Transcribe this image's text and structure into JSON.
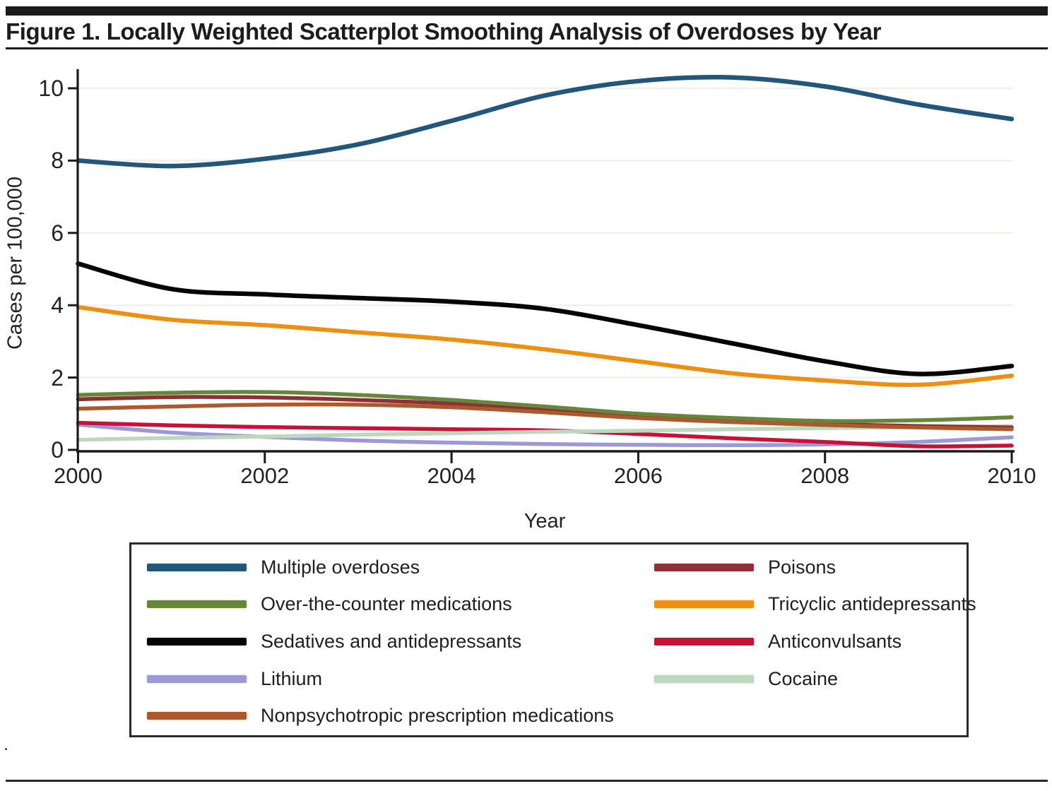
{
  "page": {
    "title": "Figure 1. Locally Weighted Scatterplot Smoothing Analysis of Overdoses by Year",
    "footnote": "."
  },
  "chart_data": {
    "type": "line",
    "title": "Figure 1. Locally Weighted Scatterplot Smoothing Analysis of Overdoses by Year",
    "xlabel": "Year",
    "ylabel": "Cases per 100,000",
    "x": [
      2000,
      2001,
      2002,
      2003,
      2004,
      2005,
      2006,
      2007,
      2008,
      2009,
      2010
    ],
    "x_ticks": [
      2000,
      2002,
      2004,
      2006,
      2008,
      2010
    ],
    "y_ticks": [
      0,
      2,
      4,
      6,
      8,
      10
    ],
    "xlim": [
      2000,
      2010
    ],
    "ylim": [
      0,
      10.6
    ],
    "grid": "faint horizontal gridlines at each y tick",
    "smoothing": "lowess",
    "series": [
      {
        "name": "Multiple overdoses",
        "color": "#22577B",
        "values": [
          8.0,
          7.85,
          8.05,
          8.45,
          9.1,
          9.8,
          10.2,
          10.3,
          10.05,
          9.55,
          9.15
        ]
      },
      {
        "name": "Over-the-counter medications",
        "color": "#66863C",
        "values": [
          1.52,
          1.58,
          1.6,
          1.52,
          1.38,
          1.2,
          1.0,
          0.88,
          0.8,
          0.82,
          0.9
        ]
      },
      {
        "name": "Sedatives and antidepressants",
        "color": "#050505",
        "values": [
          5.15,
          4.45,
          4.3,
          4.2,
          4.1,
          3.9,
          3.45,
          2.95,
          2.45,
          2.1,
          2.32
        ]
      },
      {
        "name": "Lithium",
        "color": "#9D99D8",
        "values": [
          0.7,
          0.48,
          0.36,
          0.26,
          0.2,
          0.16,
          0.14,
          0.13,
          0.15,
          0.22,
          0.35
        ]
      },
      {
        "name": "Nonpsychotropic prescription medications",
        "color": "#AC5A2D",
        "values": [
          1.14,
          1.2,
          1.25,
          1.25,
          1.18,
          1.04,
          0.88,
          0.77,
          0.69,
          0.62,
          0.57
        ]
      },
      {
        "name": "Poisons",
        "color": "#8C3134",
        "values": [
          1.4,
          1.46,
          1.45,
          1.38,
          1.28,
          1.12,
          0.95,
          0.82,
          0.72,
          0.66,
          0.62
        ]
      },
      {
        "name": "Tricyclic antidepressants",
        "color": "#EE8F12",
        "values": [
          3.95,
          3.6,
          3.45,
          3.25,
          3.05,
          2.78,
          2.45,
          2.12,
          1.92,
          1.8,
          2.05
        ]
      },
      {
        "name": "Anticonvulsants",
        "color": "#CB1038",
        "values": [
          0.75,
          0.68,
          0.63,
          0.6,
          0.57,
          0.54,
          0.44,
          0.32,
          0.22,
          0.1,
          0.12
        ]
      },
      {
        "name": "Cocaine",
        "color": "#BED8C0",
        "values": [
          0.28,
          0.33,
          0.37,
          0.42,
          0.46,
          0.5,
          0.53,
          0.57,
          0.6,
          0.63,
          0.66
        ]
      }
    ],
    "legend": {
      "position": "boxed, below chart",
      "left_column_series": [
        0,
        1,
        2,
        3,
        4
      ],
      "right_column_series": [
        5,
        6,
        7,
        8
      ]
    }
  }
}
